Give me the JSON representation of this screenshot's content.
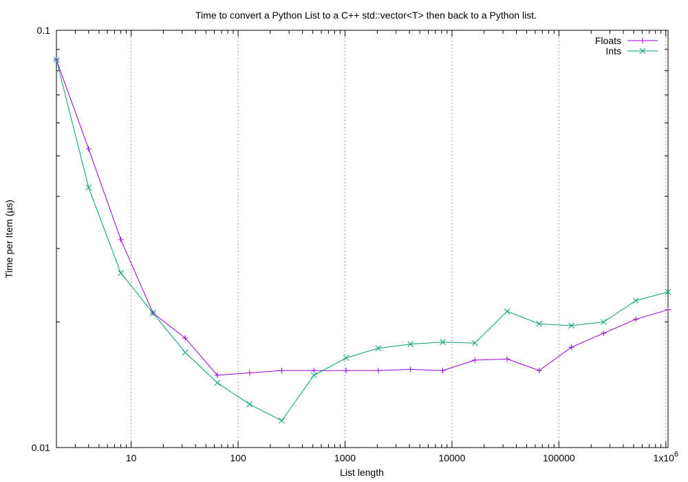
{
  "chart_data": {
    "type": "line",
    "title": "Time to convert a Python List to a C++ std::vector<T> then back to a Python list.",
    "xlabel": "List length",
    "ylabel": "Time per Item (µs)",
    "x_scale": "log",
    "y_scale": "log",
    "xlim": [
      2,
      1048576
    ],
    "ylim": [
      0.01,
      0.1
    ],
    "grid": "x-major",
    "legend_position": "top-right",
    "x_ticks": [
      {
        "value": 10,
        "label": "10"
      },
      {
        "value": 100,
        "label": "100"
      },
      {
        "value": 1000,
        "label": "1000"
      },
      {
        "value": 10000,
        "label": "10000"
      },
      {
        "value": 100000,
        "label": "100000"
      },
      {
        "value": 1000000,
        "label": "1x10",
        "superscript": "6"
      }
    ],
    "y_ticks": [
      {
        "value": 0.01,
        "label": "0.01"
      },
      {
        "value": 0.1,
        "label": "0.1"
      }
    ],
    "x": [
      2,
      4,
      8,
      16,
      32,
      64,
      128,
      256,
      512,
      1024,
      2048,
      4096,
      8192,
      16384,
      32768,
      65536,
      131072,
      262144,
      524288,
      1048576
    ],
    "series": [
      {
        "name": "Floats",
        "color": "#9400d3",
        "marker": "plus",
        "values": [
          0.085,
          0.052,
          0.0315,
          0.021,
          0.0183,
          0.0149,
          0.0151,
          0.0153,
          0.0153,
          0.0153,
          0.0153,
          0.0154,
          0.0153,
          0.0162,
          0.0163,
          0.0153,
          0.0174,
          0.0188,
          0.0203,
          0.0214
        ]
      },
      {
        "name": "Ints",
        "color": "#009e73",
        "marker": "cross",
        "values": [
          0.085,
          0.042,
          0.0262,
          0.021,
          0.0169,
          0.0143,
          0.0127,
          0.0116,
          0.0149,
          0.0164,
          0.0173,
          0.0177,
          0.0179,
          0.0178,
          0.0212,
          0.0198,
          0.0196,
          0.02,
          0.0225,
          0.0236
        ]
      }
    ]
  }
}
